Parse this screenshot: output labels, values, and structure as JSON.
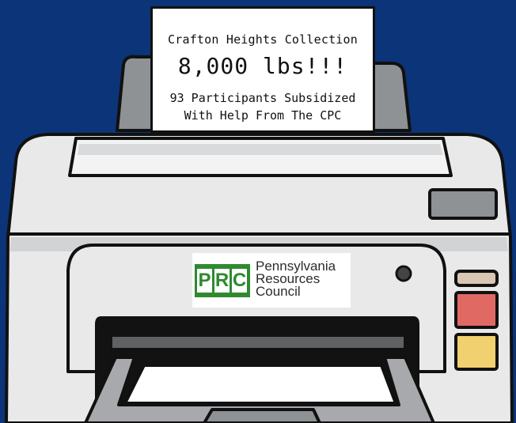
{
  "paper": {
    "line1": "Crafton Heights Collection",
    "line2": "8,000 lbs!!!",
    "line3": "93 Participants Subsidized",
    "line4": "With Help From The CPC"
  },
  "logo": {
    "letters": [
      "P",
      "R",
      "C"
    ],
    "name_lines": [
      "Pennsylvania",
      "Resources",
      "Council"
    ],
    "brand_color": "#2f8a2f"
  },
  "colors": {
    "background": "#0b3479",
    "printer_body": "#e9e9ea",
    "printer_shadow": "#c8c9cb",
    "button_top": "#d8c7b3",
    "button_middle": "#e06a63",
    "button_bottom": "#f1d06f",
    "display": "#8f9294"
  }
}
